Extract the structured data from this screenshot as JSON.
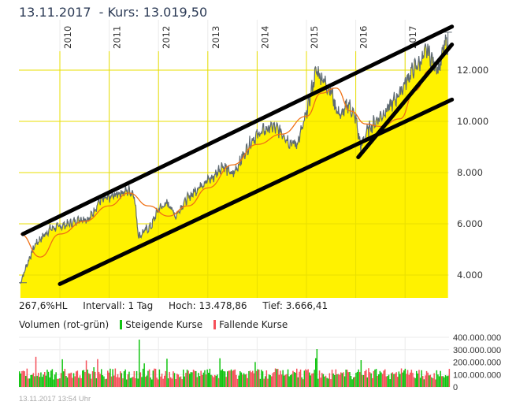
{
  "header": {
    "date": "13.11.2017",
    "kurs_label": "- Kurs: 13.019,50"
  },
  "info": {
    "hl": "267,6%HL",
    "interval": "Intervall: 1 Tag",
    "high": "Hoch: 13.478,86",
    "low": "Tief: 3.666,41"
  },
  "volume_legend": {
    "title": "Volumen (rot-grün)",
    "rising": "Steigende Kurse",
    "falling": "Fallende Kurse"
  },
  "footer": {
    "timestamp": "13.11.2017 13:54 Uhr"
  },
  "colors": {
    "area_fill": "#fff200",
    "price_line": "#5f6b73",
    "moving_average": "#f07014",
    "trendline": "#000000",
    "volume_up": "#11c411",
    "volume_down": "#f5505a",
    "grid": "#ebebeb",
    "title": "#2b3a55"
  },
  "chart_data": [
    {
      "type": "area",
      "title": "13.11.2017 - Kurs: 13.019,50",
      "xlabel": "",
      "ylabel": "",
      "x_ticks": [
        "2010",
        "2011",
        "2012",
        "2013",
        "2014",
        "2015",
        "2016",
        "2017"
      ],
      "y_ticks": [
        "4.000",
        "6.000",
        "8.000",
        "10.000",
        "12.000"
      ],
      "ylim": [
        3400,
        14000
      ],
      "grid": true,
      "series": [
        {
          "name": "Kurs",
          "x": [
            2009.2,
            2009.35,
            2009.5,
            2009.65,
            2009.8,
            2010.0,
            2010.2,
            2010.4,
            2010.6,
            2010.8,
            2011.0,
            2011.2,
            2011.4,
            2011.5,
            2011.6,
            2011.7,
            2011.85,
            2012.0,
            2012.2,
            2012.35,
            2012.5,
            2012.7,
            2012.9,
            2013.1,
            2013.3,
            2013.5,
            2013.7,
            2013.9,
            2014.1,
            2014.3,
            2014.5,
            2014.65,
            2014.8,
            2014.95,
            2015.1,
            2015.2,
            2015.35,
            2015.5,
            2015.6,
            2015.7,
            2015.85,
            2016.0,
            2016.1,
            2016.25,
            2016.4,
            2016.55,
            2016.7,
            2016.85,
            2017.0,
            2017.15,
            2017.3,
            2017.45,
            2017.6,
            2017.7,
            2017.8,
            2017.87
          ],
          "values": [
            3700,
            4500,
            5200,
            5500,
            5800,
            5900,
            6000,
            6200,
            6200,
            6900,
            7000,
            7200,
            7300,
            7200,
            5500,
            5700,
            5900,
            6600,
            6800,
            6300,
            6800,
            7200,
            7600,
            7800,
            8300,
            7900,
            8600,
            9300,
            9600,
            9800,
            9600,
            9200,
            9100,
            9900,
            11200,
            12000,
            11600,
            11200,
            10500,
            10200,
            10700,
            10100,
            9000,
            9700,
            10000,
            10300,
            10600,
            11000,
            11500,
            12000,
            12300,
            12800,
            12200,
            12100,
            13000,
            13019
          ]
        },
        {
          "name": "Gleitender Durchschnitt",
          "x": [
            2009.2,
            2009.6,
            2010.0,
            2010.5,
            2011.0,
            2011.4,
            2011.8,
            2012.2,
            2012.6,
            2013.0,
            2013.5,
            2014.0,
            2014.5,
            2015.0,
            2015.3,
            2015.6,
            2015.9,
            2016.2,
            2016.5,
            2016.9,
            2017.2,
            2017.5
          ],
          "values": [
            5600,
            4700,
            5600,
            6100,
            6700,
            7200,
            6700,
            6300,
            6700,
            7400,
            8300,
            9100,
            9500,
            10200,
            11100,
            11300,
            10400,
            9900,
            9800,
            10100,
            11200,
            12000
          ]
        }
      ],
      "trendlines": [
        {
          "name": "upper-channel",
          "from": [
            2009.25,
            5600
          ],
          "to": [
            2017.95,
            13700
          ]
        },
        {
          "name": "lower-channel",
          "from": [
            2010.0,
            3650
          ],
          "to": [
            2017.95,
            10850
          ]
        },
        {
          "name": "steep-support",
          "from": [
            2016.05,
            8600
          ],
          "to": [
            2017.95,
            13000
          ]
        }
      ]
    },
    {
      "type": "bar",
      "title": "Volumen (rot-grün)",
      "y_ticks": [
        "0",
        "100.000.000",
        "200.000.000",
        "300.000.000",
        "400.000.000"
      ],
      "ylim": [
        0,
        400000000
      ],
      "series": [
        {
          "name": "Steigende Kurse",
          "color": "#11c411"
        },
        {
          "name": "Fallende Kurse",
          "color": "#f5505a"
        }
      ],
      "typical_range": [
        60000000,
        160000000
      ],
      "peaks": [
        {
          "x": 2011.6,
          "value": 410000000
        },
        {
          "x": 2015.2,
          "value": 330000000
        },
        {
          "x": 2016.1,
          "value": 270000000
        }
      ]
    }
  ]
}
